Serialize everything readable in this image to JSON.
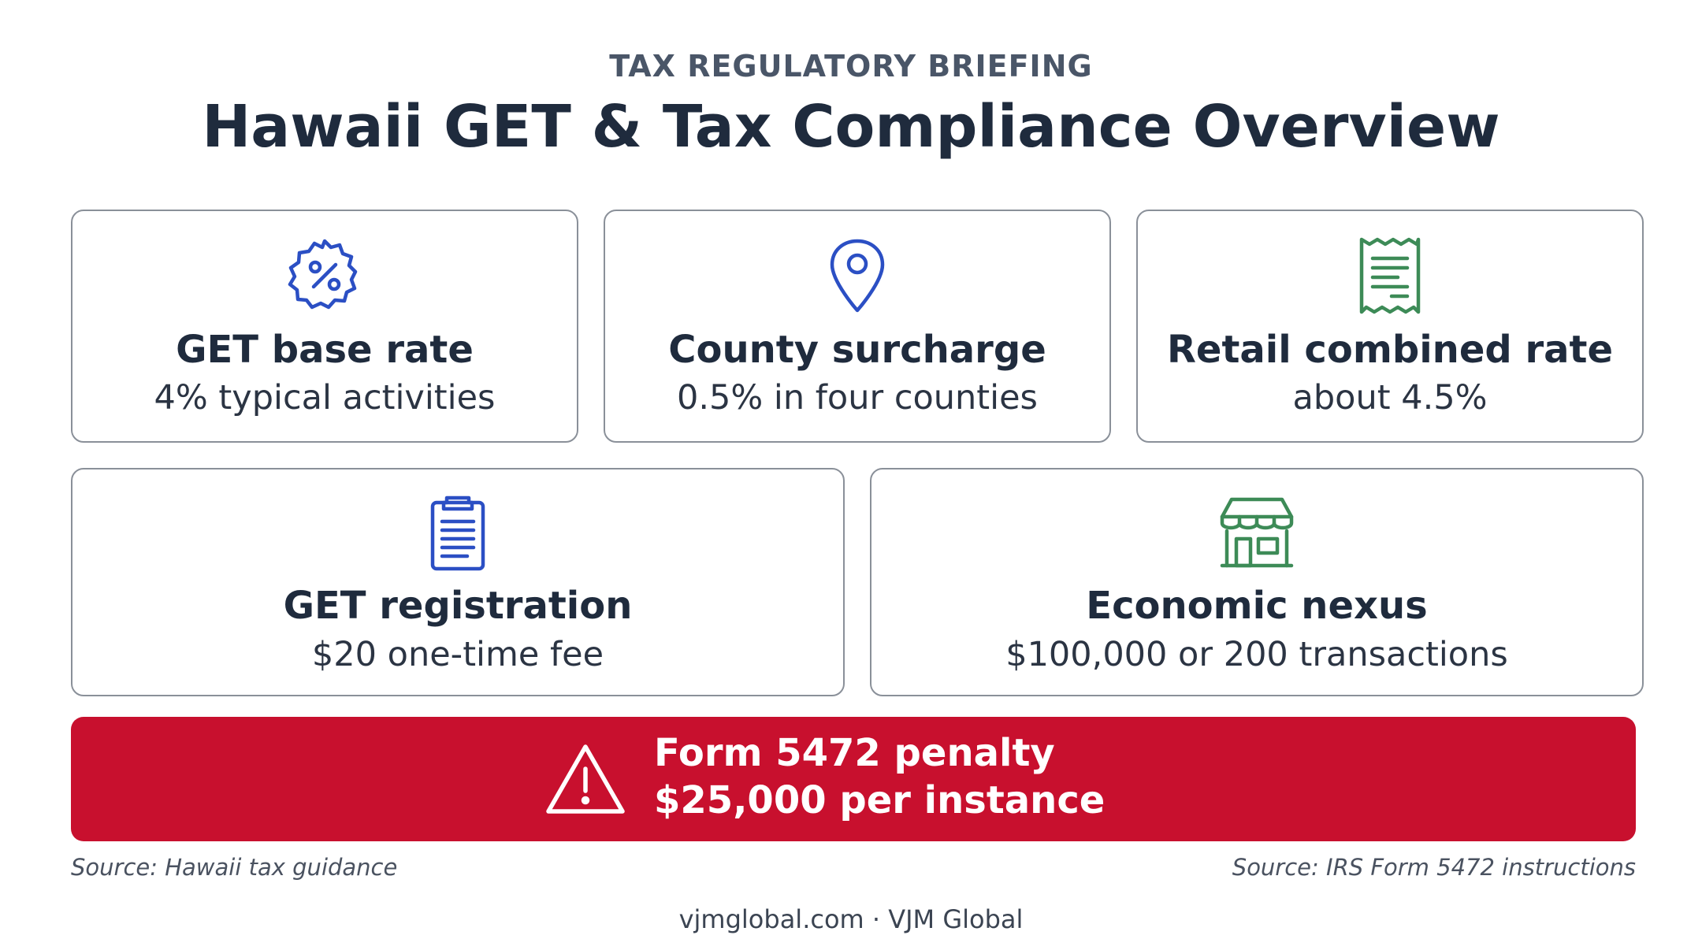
{
  "header": {
    "eyebrow": "TAX REGULATORY BRIEFING",
    "title": "Hawaii GET & Tax Compliance Overview"
  },
  "cards": [
    {
      "icon": "percent-badge-icon",
      "title": "GET base rate",
      "value": "4% typical activities",
      "icon_color": "#2b4fc4"
    },
    {
      "icon": "location-pin-icon",
      "title": "County surcharge",
      "value": "0.5% in four counties",
      "icon_color": "#2b4fc4"
    },
    {
      "icon": "receipt-icon",
      "title": "Retail combined rate",
      "value": "about 4.5%",
      "icon_color": "#3d8b57"
    },
    {
      "icon": "clipboard-icon",
      "title": "GET registration",
      "value": "$20 one-time fee",
      "icon_color": "#2b4fc4"
    },
    {
      "icon": "storefront-icon",
      "title": "Economic nexus",
      "value": "$100,000 or 200 transactions",
      "icon_color": "#3d8b57"
    }
  ],
  "penalty": {
    "icon": "warning-triangle-icon",
    "title": "Form 5472 penalty",
    "value": "$25,000 per instance",
    "color": "#c8102e"
  },
  "sources": {
    "left": "Source: Hawaii tax guidance",
    "right": "Source: IRS Form 5472 instructions"
  },
  "footer": "vjmglobal.com · VJM Global"
}
